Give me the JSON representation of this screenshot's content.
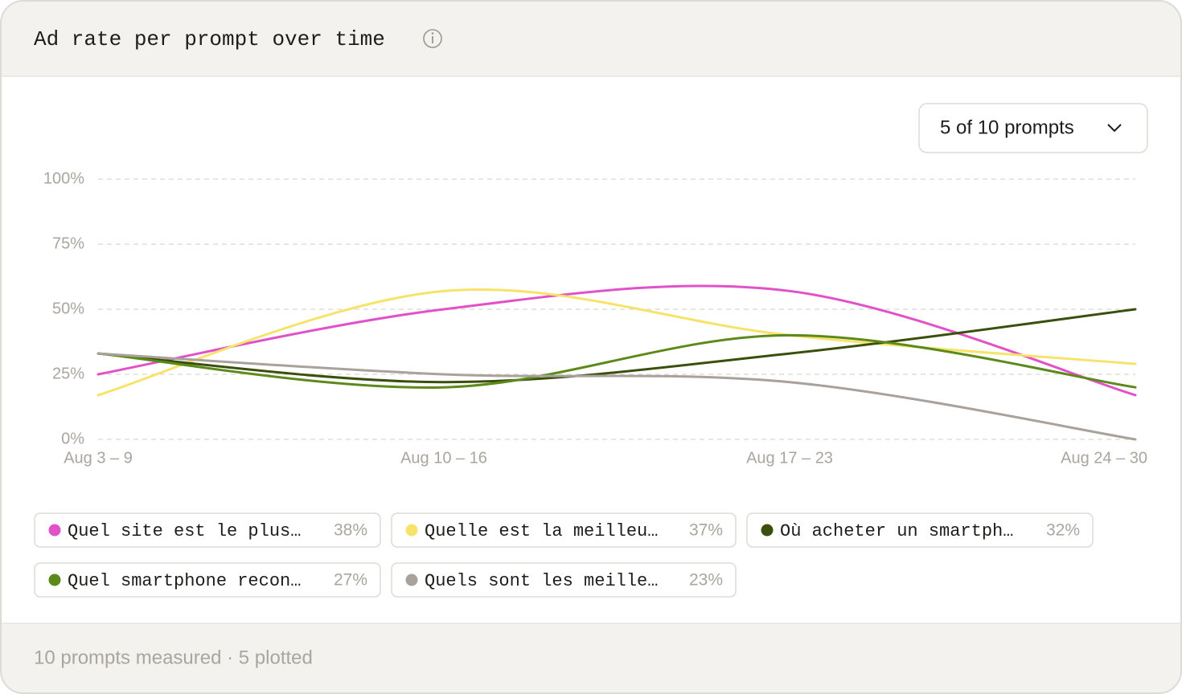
{
  "chart_data": {
    "type": "line",
    "title": "Ad rate per prompt over time",
    "control": "5 of 10 prompts",
    "footer": "10 prompts measured · 5 plotted",
    "categories": [
      "Aug 3 – 9",
      "Aug 10 – 16",
      "Aug 17 – 23",
      "Aug 24 – 30"
    ],
    "ylim": [
      0,
      100
    ],
    "yticks": [
      {
        "value": 0,
        "label": "0%"
      },
      {
        "value": 25,
        "label": "25%"
      },
      {
        "value": 50,
        "label": "50%"
      },
      {
        "value": 75,
        "label": "75%"
      },
      {
        "value": 100,
        "label": "100%"
      }
    ],
    "grid": true,
    "series": [
      {
        "name": "Quel site est le plus…",
        "color": "#e152c8",
        "values": [
          25,
          50,
          57,
          17
        ],
        "average": 38,
        "average_label": "38%"
      },
      {
        "name": "Quelle est la meilleu…",
        "color": "#f7e36a",
        "values": [
          17,
          57,
          40,
          29
        ],
        "average": 37,
        "average_label": "37%"
      },
      {
        "name": "Où acheter un smartph…",
        "color": "#3b4f0c",
        "values": [
          33,
          22,
          33,
          50
        ],
        "average": 32,
        "average_label": "32%"
      },
      {
        "name": "Quel smartphone recon…",
        "color": "#5c8a1a",
        "values": [
          33,
          20,
          40,
          20
        ],
        "average": 27,
        "average_label": "27%"
      },
      {
        "name": "Quels sont les meille…",
        "color": "#a9a19b",
        "values": [
          33,
          25,
          22,
          0
        ],
        "average": 23,
        "average_label": "23%"
      }
    ]
  }
}
